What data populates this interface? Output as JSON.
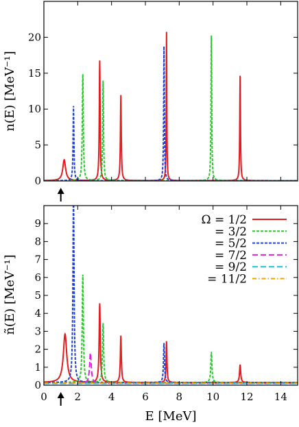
{
  "chart_data": [
    {
      "type": "line",
      "panel": "top",
      "ylabel": "n(E) [MeV⁻¹]",
      "xlim": [
        0,
        15
      ],
      "ylim": [
        0,
        25
      ],
      "yticks": [
        0,
        5,
        10,
        15,
        20
      ],
      "ytick_labels": [
        "0",
        "5",
        "10",
        "15",
        "20"
      ],
      "grid": false,
      "arrow_at_x": 1.0,
      "series": [
        {
          "key": "omega_1_2",
          "color": "#e41a1c",
          "style": "solid",
          "peaks": [
            {
              "E": 1.2,
              "h": 2.9,
              "w": 0.1
            },
            {
              "E": 3.3,
              "h": 16.7,
              "w": 0.03
            },
            {
              "E": 4.55,
              "h": 11.9,
              "w": 0.03
            },
            {
              "E": 7.25,
              "h": 20.7,
              "w": 0.02
            },
            {
              "E": 11.6,
              "h": 14.6,
              "w": 0.025
            }
          ],
          "base": 0.05
        },
        {
          "key": "omega_3_2",
          "color": "#22cc22",
          "style": "dashed",
          "peaks": [
            {
              "E": 2.3,
              "h": 14.8,
              "w": 0.035
            },
            {
              "E": 3.5,
              "h": 13.9,
              "w": 0.03
            },
            {
              "E": 9.9,
              "h": 20.2,
              "w": 0.025
            }
          ],
          "base": 0.05
        },
        {
          "key": "omega_5_2",
          "color": "#1f3fd6",
          "style": "dashed",
          "peaks": [
            {
              "E": 1.75,
              "h": 10.4,
              "w": 0.03
            },
            {
              "E": 7.1,
              "h": 18.7,
              "w": 0.025
            }
          ],
          "base": 0.03
        }
      ]
    },
    {
      "type": "line",
      "panel": "bottom",
      "xlabel": "E [MeV]",
      "ylabel": "ñ(E) [MeV⁻¹]",
      "xlim": [
        0,
        15
      ],
      "ylim": [
        0,
        10
      ],
      "xticks": [
        0,
        2,
        4,
        6,
        8,
        10,
        12,
        14
      ],
      "xtick_labels": [
        "0",
        "2",
        "4",
        "6",
        "8",
        "10",
        "12",
        "14"
      ],
      "yticks": [
        0,
        1,
        2,
        3,
        4,
        5,
        6,
        7,
        8,
        9
      ],
      "ytick_labels": [
        "0",
        "1",
        "2",
        "3",
        "4",
        "5",
        "6",
        "7",
        "8",
        "9"
      ],
      "grid": false,
      "legend_position": "top-right",
      "arrow_at_x": 1.0,
      "series": [
        {
          "key": "omega_1_2",
          "name": "Ω = 1/2",
          "color": "#e41a1c",
          "style": "solid",
          "peaks": [
            {
              "E": 1.25,
              "h": 2.7,
              "w": 0.12
            },
            {
              "E": 3.3,
              "h": 4.4,
              "w": 0.04
            },
            {
              "E": 4.55,
              "h": 2.6,
              "w": 0.035
            },
            {
              "E": 7.25,
              "h": 2.3,
              "w": 0.03
            },
            {
              "E": 11.6,
              "h": 1.0,
              "w": 0.04
            }
          ],
          "base": 0.15
        },
        {
          "key": "omega_3_2",
          "name": "= 3/2",
          "color": "#22cc22",
          "style": "dashed",
          "peaks": [
            {
              "E": 2.3,
              "h": 6.0,
              "w": 0.04
            },
            {
              "E": 3.5,
              "h": 3.3,
              "w": 0.04
            },
            {
              "E": 9.9,
              "h": 1.7,
              "w": 0.04
            }
          ],
          "base": 0.15
        },
        {
          "key": "omega_5_2",
          "name": "= 5/2",
          "color": "#1f3fd6",
          "style": "dashed",
          "peaks": [
            {
              "E": 1.75,
              "h": 10.5,
              "w": 0.04
            },
            {
              "E": 7.1,
              "h": 2.2,
              "w": 0.035
            }
          ],
          "base": 0.15
        },
        {
          "key": "omega_7_2",
          "name": "= 7/2",
          "color": "#e020e0",
          "style": "long-dashed",
          "peaks": [
            {
              "E": 2.75,
              "h": 1.7,
              "w": 0.06
            }
          ],
          "base": 0.1
        },
        {
          "key": "omega_9_2",
          "name": "= 9/2",
          "color": "#12c2e0",
          "style": "long-dashed",
          "peaks": [],
          "base": 0.1
        },
        {
          "key": "omega_11_2",
          "name": "= 11/2",
          "color": "#f0a000",
          "style": "dash-dot",
          "peaks": [],
          "base": 0.12
        }
      ]
    }
  ]
}
